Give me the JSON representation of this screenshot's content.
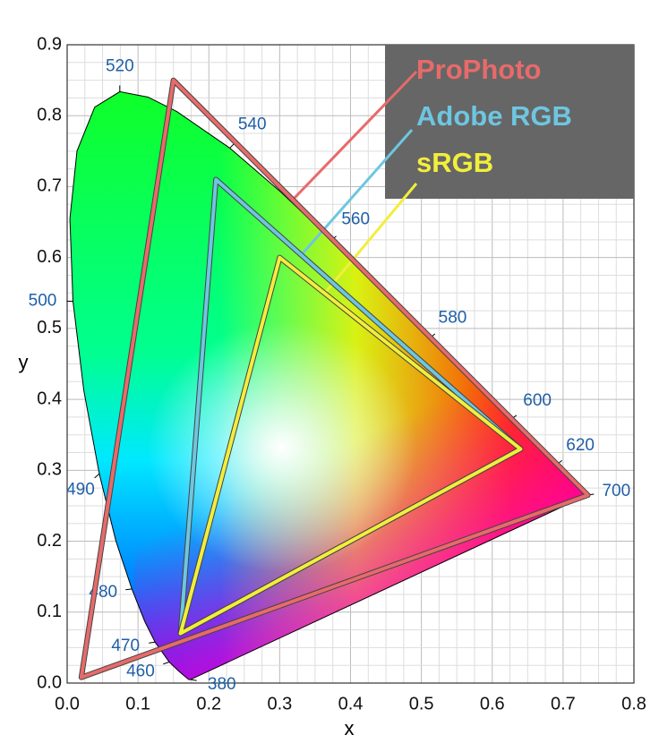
{
  "chart_data": {
    "type": "gamut",
    "xlabel": "x",
    "ylabel": "y",
    "xlim": [
      0,
      0.8
    ],
    "ylim": [
      0,
      0.9
    ],
    "xticks": [
      {
        "value": 0,
        "label": "0.0"
      },
      0.1,
      0.2,
      0.3,
      0.4,
      0.5,
      0.6,
      0.7,
      0.8
    ],
    "yticks": [
      {
        "value": 0,
        "label": "0.0"
      },
      0.1,
      0.2,
      0.3,
      0.4,
      0.5,
      0.6,
      0.7,
      0.8,
      0.9
    ],
    "grid": true,
    "legend": "upper right",
    "locus": {
      "x": [
        0.1741,
        0.1733,
        0.1714,
        0.1644,
        0.1566,
        0.144,
        0.1241,
        0.1096,
        0.0913,
        0.0687,
        0.0454,
        0.0235,
        0.0082,
        0.0039,
        0.0139,
        0.0389,
        0.0743,
        0.1142,
        0.1547,
        0.2296,
        0.3016,
        0.3731,
        0.4441,
        0.5125,
        0.5752,
        0.627,
        0.6915,
        0.719,
        0.7347
      ],
      "y": [
        0.005,
        0.0048,
        0.0051,
        0.0109,
        0.0177,
        0.0297,
        0.0578,
        0.0868,
        0.1327,
        0.2007,
        0.295,
        0.4127,
        0.5384,
        0.6548,
        0.7502,
        0.812,
        0.8338,
        0.8262,
        0.8059,
        0.7543,
        0.6923,
        0.6245,
        0.5547,
        0.4866,
        0.4242,
        0.3725,
        0.3083,
        0.2809,
        0.2653
      ]
    },
    "annotations": [
      {
        "text": "520",
        "x": 0.0743,
        "y": 0.8338
      },
      {
        "text": "540",
        "x": 0.2296,
        "y": 0.7543
      },
      {
        "text": "560",
        "x": 0.3731,
        "y": 0.6245
      },
      {
        "text": "580",
        "x": 0.5125,
        "y": 0.4866
      },
      {
        "text": "600",
        "x": 0.627,
        "y": 0.3725
      },
      {
        "text": "620",
        "x": 0.6915,
        "y": 0.3083
      },
      {
        "text": "700",
        "x": 0.7347,
        "y": 0.2653
      },
      {
        "text": "500",
        "x": 0.0082,
        "y": 0.5384
      },
      {
        "text": "490",
        "x": 0.0454,
        "y": 0.295
      },
      {
        "text": "480",
        "x": 0.0913,
        "y": 0.1327
      },
      {
        "text": "470",
        "x": 0.1241,
        "y": 0.0578
      },
      {
        "text": "460",
        "x": 0.144,
        "y": 0.0297
      },
      {
        "text": "380",
        "x": 0.1741,
        "y": 0.005
      }
    ],
    "series": [
      {
        "name": "ProPhoto",
        "color": "#e86a6a",
        "x": [
          0.735,
          0.15,
          0.02
        ],
        "values": [
          0.265,
          0.85,
          0.008
        ]
      },
      {
        "name": "Adobe RGB",
        "color": "#6ec6e0",
        "x": [
          0.64,
          0.21,
          0.16
        ],
        "values": [
          0.33,
          0.71,
          0.07
        ]
      },
      {
        "name": "sRGB",
        "color": "#f2ee3c",
        "x": [
          0.64,
          0.3,
          0.16
        ],
        "values": [
          0.33,
          0.6,
          0.07
        ]
      }
    ]
  }
}
